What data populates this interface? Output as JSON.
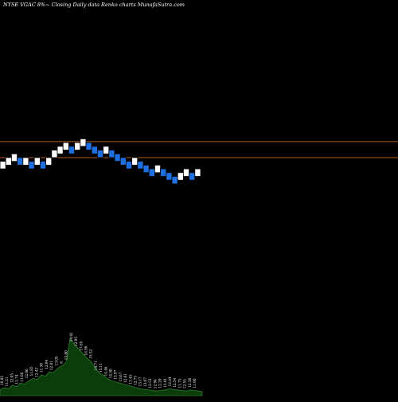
{
  "chart_data": {
    "type": "renko",
    "title": "NYSE VGAC 8%~  Closing Daily data  Renko  charts MunafaSutra.com",
    "colors": {
      "background": "#000000",
      "up_brick": "#ffffff",
      "down_brick": "#1e6fe0",
      "brick_border": "#000000",
      "resistance_line": "#b35a1f",
      "volume_fill": "#0b3d0b",
      "volume_line": "#2f7a2f",
      "label": "#ffffff"
    },
    "price_axis": {
      "top": 21.0,
      "bottom": 7.0
    },
    "reference_lines": [
      {
        "name": "upper-line",
        "price": 14.3
      },
      {
        "name": "lower-line",
        "price": 13.45
      }
    ],
    "bricks": [
      {
        "i": 0,
        "low": 12.85,
        "high": 13.25,
        "dir": "up"
      },
      {
        "i": 1,
        "low": 13.05,
        "high": 13.45,
        "dir": "up"
      },
      {
        "i": 2,
        "low": 13.25,
        "high": 13.65,
        "dir": "up"
      },
      {
        "i": 3,
        "low": 13.05,
        "high": 13.45,
        "dir": "down"
      },
      {
        "i": 4,
        "low": 13.05,
        "high": 13.45,
        "dir": "up"
      },
      {
        "i": 5,
        "low": 12.85,
        "high": 13.25,
        "dir": "down"
      },
      {
        "i": 6,
        "low": 13.05,
        "high": 13.45,
        "dir": "up"
      },
      {
        "i": 7,
        "low": 12.85,
        "high": 13.25,
        "dir": "down"
      },
      {
        "i": 8,
        "low": 13.05,
        "high": 13.45,
        "dir": "up"
      },
      {
        "i": 9,
        "low": 13.45,
        "high": 13.85,
        "dir": "up"
      },
      {
        "i": 10,
        "low": 13.65,
        "high": 14.05,
        "dir": "up"
      },
      {
        "i": 11,
        "low": 13.85,
        "high": 14.25,
        "dir": "up"
      },
      {
        "i": 12,
        "low": 13.65,
        "high": 14.05,
        "dir": "down"
      },
      {
        "i": 13,
        "low": 13.85,
        "high": 14.25,
        "dir": "up"
      },
      {
        "i": 14,
        "low": 14.05,
        "high": 14.45,
        "dir": "up"
      },
      {
        "i": 15,
        "low": 13.85,
        "high": 14.25,
        "dir": "down"
      },
      {
        "i": 16,
        "low": 13.65,
        "high": 14.05,
        "dir": "down"
      },
      {
        "i": 17,
        "low": 13.45,
        "high": 13.85,
        "dir": "down"
      },
      {
        "i": 18,
        "low": 13.65,
        "high": 14.05,
        "dir": "up"
      },
      {
        "i": 19,
        "low": 13.45,
        "high": 13.85,
        "dir": "down"
      },
      {
        "i": 20,
        "low": 13.25,
        "high": 13.65,
        "dir": "down"
      },
      {
        "i": 21,
        "low": 13.05,
        "high": 13.45,
        "dir": "down"
      },
      {
        "i": 22,
        "low": 12.85,
        "high": 13.25,
        "dir": "down"
      },
      {
        "i": 23,
        "low": 13.05,
        "high": 13.45,
        "dir": "up"
      },
      {
        "i": 24,
        "low": 12.85,
        "high": 13.25,
        "dir": "down"
      },
      {
        "i": 25,
        "low": 12.65,
        "high": 13.05,
        "dir": "down"
      },
      {
        "i": 26,
        "low": 12.45,
        "high": 12.85,
        "dir": "down"
      },
      {
        "i": 27,
        "low": 12.65,
        "high": 13.05,
        "dir": "up"
      },
      {
        "i": 28,
        "low": 12.45,
        "high": 12.85,
        "dir": "down"
      },
      {
        "i": 29,
        "low": 12.25,
        "high": 12.65,
        "dir": "down"
      },
      {
        "i": 30,
        "low": 12.05,
        "high": 12.45,
        "dir": "down"
      },
      {
        "i": 31,
        "low": 12.25,
        "high": 12.65,
        "dir": "up"
      },
      {
        "i": 32,
        "low": 12.45,
        "high": 12.85,
        "dir": "up"
      },
      {
        "i": 33,
        "low": 12.25,
        "high": 12.65,
        "dir": "down"
      },
      {
        "i": 34,
        "low": 12.45,
        "high": 12.85,
        "dir": "up"
      }
    ],
    "volume": {
      "max": 1.0,
      "values": [
        0.1,
        0.14,
        0.12,
        0.18,
        0.16,
        0.22,
        0.2,
        0.26,
        0.3,
        0.28,
        0.36,
        0.34,
        0.42,
        0.4,
        0.48,
        0.52,
        0.58,
        1.0,
        0.9,
        0.82,
        0.74,
        0.66,
        0.6,
        0.5,
        0.4,
        0.36,
        0.3,
        0.26,
        0.24,
        0.22,
        0.2,
        0.18,
        0.16,
        0.14,
        0.12,
        0.11,
        0.1,
        0.09,
        0.08,
        0.09,
        0.1,
        0.12,
        0.11,
        0.1,
        0.09,
        0.08,
        0.1,
        0.09,
        0.08,
        0.07
      ]
    },
    "volume_labels": [
      "10.85",
      "11.21",
      "12.05",
      "11.74",
      "11.08",
      "12.06",
      "11.85",
      "12.43",
      "11.30",
      "12.94",
      "12.81",
      "13.05",
      "6",
      "13.80",
      "14.01",
      "12.95",
      "17.65",
      "16.98",
      "15.52",
      "14.71",
      "15.11",
      "14.46",
      "14.50",
      "13.97",
      "13.67",
      "12.61",
      "13.45",
      "12.73",
      "13.17",
      "13.07",
      "12.53",
      "12.94",
      "12.29",
      "13.01",
      "12.84",
      "12.54",
      "11.75",
      "12.55",
      "12.36",
      "11.90"
    ]
  }
}
